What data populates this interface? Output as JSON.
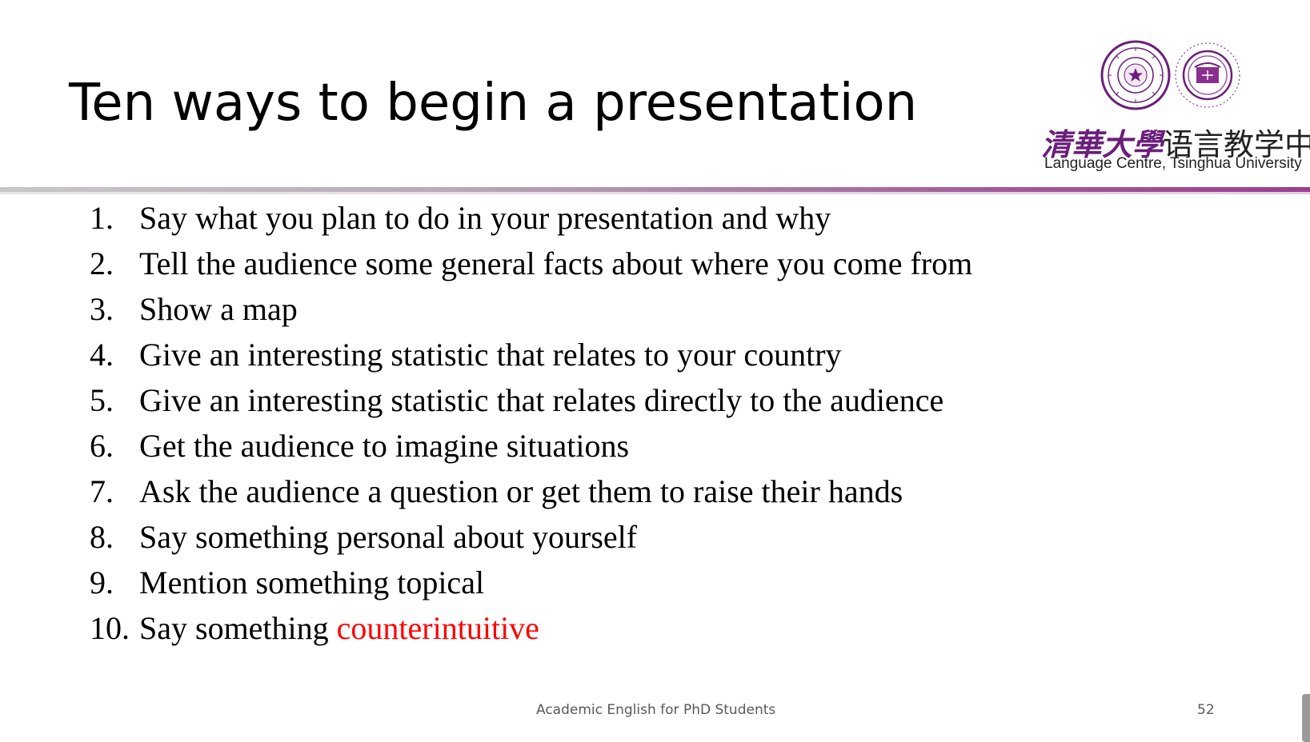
{
  "slide": {
    "title": "Ten ways to begin a presentation",
    "logo": {
      "brand_cn": "清華大學",
      "centre_cn": "语言教学中心",
      "english": "Language Centre, Tsinghua University",
      "accent_color": "#6a1f7a"
    },
    "items": [
      {
        "number": "1.",
        "text": "Say what you plan to do in your presentation and why"
      },
      {
        "number": "2.",
        "text": "Tell the audience some general facts about where you come from"
      },
      {
        "number": "3.",
        "text": "Show a map"
      },
      {
        "number": "4.",
        "text": "Give an interesting statistic that relates to your country"
      },
      {
        "number": "5.",
        "text": "Give an interesting statistic that relates directly to the audience"
      },
      {
        "number": "6.",
        "text": "Get the audience to imagine situations"
      },
      {
        "number": "7.",
        "text": "Ask the audience a question or get them to raise their hands"
      },
      {
        "number": "8.",
        "text": "Say something personal about yourself"
      },
      {
        "number": "9.",
        "text": "Mention something topical"
      },
      {
        "number": "10.",
        "text": "Say something ",
        "highlight": "counterintuitive",
        "highlight_color": "#ff0000"
      }
    ],
    "footer": "Academic English for PhD Students",
    "page_number": "52"
  }
}
